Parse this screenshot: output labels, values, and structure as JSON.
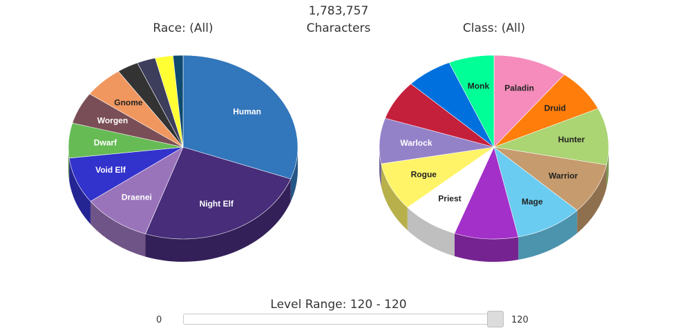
{
  "header": {
    "total_count": "1,783,757",
    "total_label": "Characters"
  },
  "chart_data": [
    {
      "type": "pie",
      "title": "Race: (All)",
      "slices": [
        {
          "label": "Human",
          "value": 30.5,
          "color": "#3276bb"
        },
        {
          "label": "Night Elf",
          "value": 24.6,
          "color": "#472d7a"
        },
        {
          "label": "Draenei",
          "value": 9.6,
          "color": "#9a74bb"
        },
        {
          "label": "Void Elf",
          "value": 8.1,
          "color": "#3232cc"
        },
        {
          "label": "Dwarf",
          "value": 6.1,
          "color": "#66bb55"
        },
        {
          "label": "Worgen",
          "value": 5.6,
          "color": "#7a4e56"
        },
        {
          "label": "Gnome",
          "value": 5.6,
          "color": "#f0975f"
        },
        {
          "label": "",
          "value": 3.0,
          "color": "#333333"
        },
        {
          "label": "",
          "value": 2.6,
          "color": "#3d3d5c"
        },
        {
          "label": "",
          "value": 2.5,
          "color": "#ffff33"
        },
        {
          "label": "",
          "value": 1.4,
          "color": "#0e4a6e"
        }
      ]
    },
    {
      "type": "pie",
      "title": "Class: (All)",
      "slices": [
        {
          "label": "Paladin",
          "value": 10.5,
          "color": "#f58cbc"
        },
        {
          "label": "Druid",
          "value": 7.6,
          "color": "#ff7d0a"
        },
        {
          "label": "Hunter",
          "value": 10.0,
          "color": "#abd473"
        },
        {
          "label": "Warrior",
          "value": 9.0,
          "color": "#c69b6d"
        },
        {
          "label": "Mage",
          "value": 9.5,
          "color": "#69ccf0"
        },
        {
          "label": "",
          "value": 9.0,
          "color": "#a330c9"
        },
        {
          "label": "Priest",
          "value": 8.0,
          "color": "#ffffff"
        },
        {
          "label": "Rogue",
          "value": 8.5,
          "color": "#fff468"
        },
        {
          "label": "Warlock",
          "value": 8.0,
          "color": "#9482c9"
        },
        {
          "label": "",
          "value": 7.0,
          "color": "#c41f3b"
        },
        {
          "label": "",
          "value": 6.5,
          "color": "#0070de"
        },
        {
          "label": "Monk",
          "value": 6.4,
          "color": "#00ff96"
        }
      ]
    }
  ],
  "slider": {
    "label": "Level Range: 120 - 120",
    "min_label": "0",
    "max_label": "120",
    "value": 120,
    "max": 120
  }
}
